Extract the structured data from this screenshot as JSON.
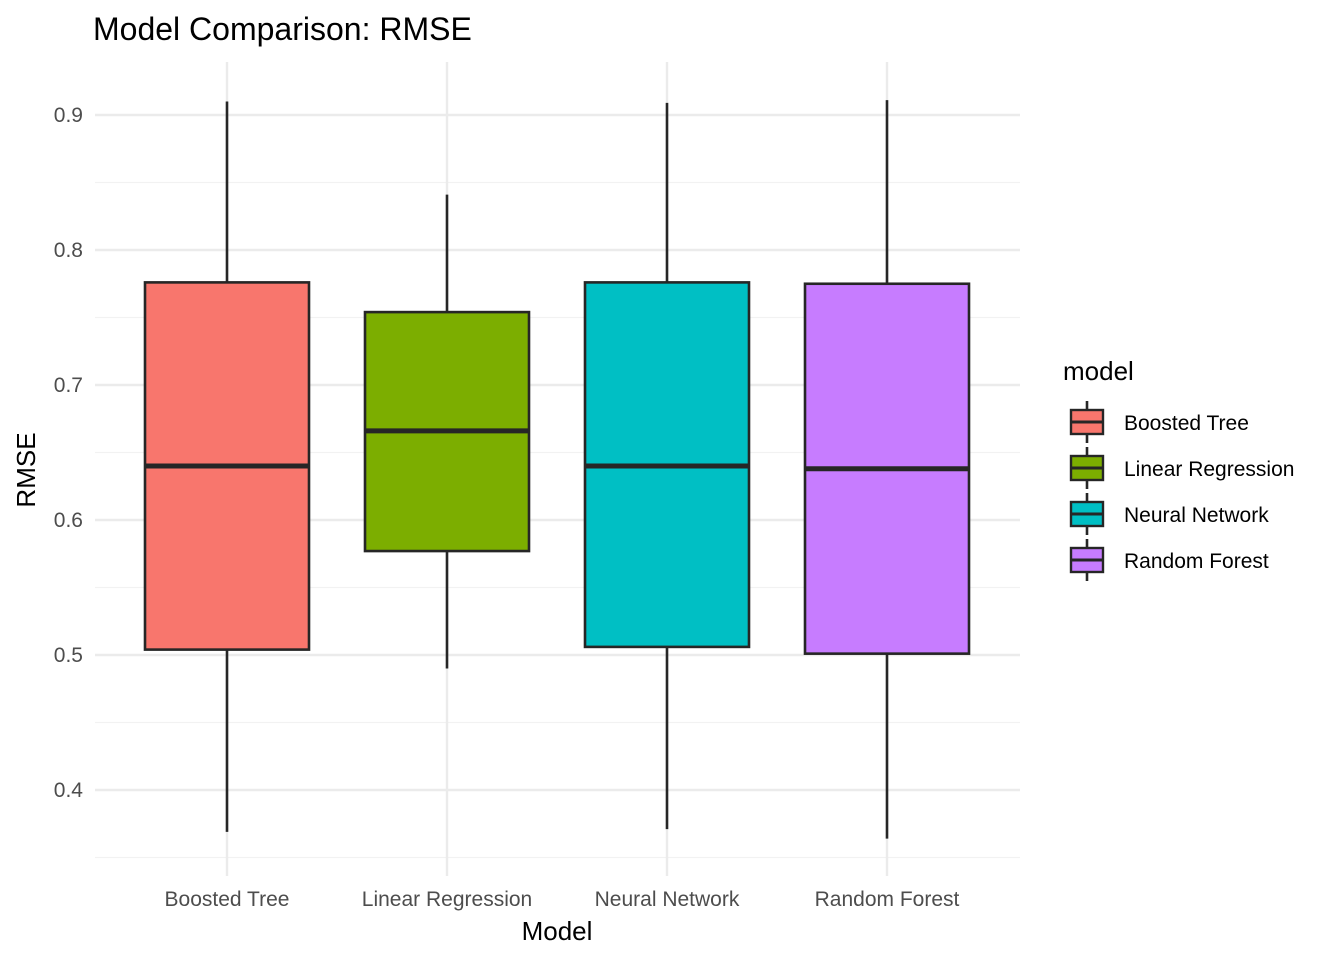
{
  "chart_data": {
    "type": "boxplot",
    "title": "Model Comparison: RMSE",
    "xlabel": "Model",
    "ylabel": "RMSE",
    "ylim": [
      0.35,
      0.93
    ],
    "yticks": [
      0.4,
      0.5,
      0.6,
      0.7,
      0.8,
      0.9
    ],
    "ytick_labels": [
      "0.4",
      "0.5",
      "0.6",
      "0.7",
      "0.8",
      "0.9"
    ],
    "grid": true,
    "legend": {
      "title": "model",
      "position": "right"
    },
    "categories": [
      "Boosted Tree",
      "Linear Regression",
      "Neural Network",
      "Random Forest"
    ],
    "series": [
      {
        "name": "Boosted Tree",
        "color": "#f8766d",
        "min": 0.369,
        "q1": 0.504,
        "median": 0.64,
        "q3": 0.776,
        "max": 0.91
      },
      {
        "name": "Linear Regression",
        "color": "#7cae00",
        "min": 0.49,
        "q1": 0.577,
        "median": 0.666,
        "q3": 0.754,
        "max": 0.841
      },
      {
        "name": "Neural Network",
        "color": "#00bfc4",
        "min": 0.371,
        "q1": 0.506,
        "median": 0.64,
        "q3": 0.776,
        "max": 0.909
      },
      {
        "name": "Random Forest",
        "color": "#c77cff",
        "min": 0.364,
        "q1": 0.501,
        "median": 0.638,
        "q3": 0.775,
        "max": 0.911
      }
    ]
  }
}
